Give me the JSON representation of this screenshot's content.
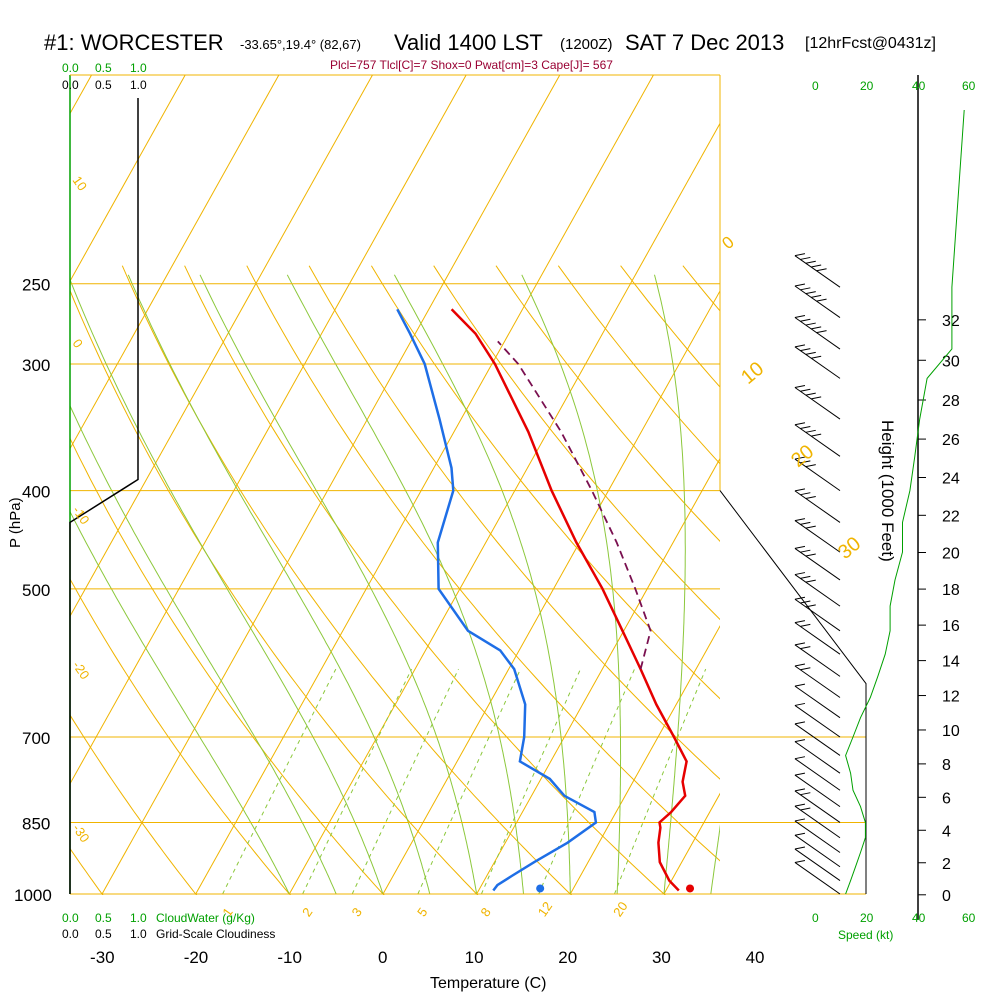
{
  "header": {
    "station": "#1: WORCESTER",
    "coords": "-33.65°,19.4° (82,67)",
    "valid": "Valid 1400 LST",
    "utc": "(1200Z)",
    "date": "SAT 7 Dec 2013",
    "forecast": "[12hrFcst@0431z]"
  },
  "indices": "Plcl=757 Tlcl[C]=7 Shox=0 Pwat[cm]=3 Cape[J]= 567",
  "colors": {
    "isotherm": "#f0b400",
    "dry_adiabat": "#f0b400",
    "moist_adiabat": "#8cc83c",
    "mixing_ratio": "#8cc83c",
    "temperature": "#e60000",
    "dewpoint": "#1e6ee6",
    "parcel": "#7a1050",
    "cloud": "#00a000"
  },
  "left_axis": {
    "label": "P (hPa)",
    "ticks": [
      "250",
      "300",
      "400",
      "500",
      "700",
      "850",
      "1000"
    ]
  },
  "bottom_axis": {
    "label": "Temperature (C)",
    "ticks": [
      "-30",
      "-20",
      "-10",
      "0",
      "10",
      "20",
      "30",
      "40"
    ]
  },
  "right_axis": {
    "label": "Height (1000 Feet)",
    "ticks": [
      "0",
      "2",
      "4",
      "6",
      "8",
      "10",
      "12",
      "14",
      "16",
      "18",
      "20",
      "22",
      "24",
      "26",
      "28",
      "30",
      "32"
    ]
  },
  "cloud_scale": {
    "top_green": [
      "0.0",
      "0.5",
      "1.0"
    ],
    "top_black": [
      "0.0",
      "0.5",
      "1.0"
    ],
    "bottom_green": [
      "0.0",
      "0.5",
      "1.0"
    ],
    "bottom_black": [
      "0.0",
      "0.5",
      "1.0"
    ],
    "cloudwater_label": "CloudWater (g/Kg)",
    "cloudiness_label": "Grid-Scale Cloudiness"
  },
  "speed_scale": {
    "top": [
      "0",
      "20",
      "40",
      "60"
    ],
    "bottom": [
      "0",
      "20",
      "40",
      "60"
    ],
    "label": "Speed (kt)"
  },
  "mixing_ratio_labels": [
    "1",
    "2",
    "3",
    "5",
    "8",
    "12",
    "20"
  ],
  "moist_adiabat_labels": [
    "0",
    "10",
    "20",
    "30"
  ],
  "dry_adiabat_labels": [
    "10",
    "0",
    "-10",
    "-20",
    "-30"
  ],
  "chart_data": {
    "type": "line",
    "plot": "skew-t log-p",
    "xlabel": "Temperature (C)",
    "ylabel": "P (hPa)",
    "xlim": [
      -33,
      46
    ],
    "ylim": [
      1000,
      250
    ],
    "series": [
      {
        "name": "temperature",
        "points": [
          {
            "p": 992,
            "t": 31.3
          },
          {
            "p": 970,
            "t": 29.5
          },
          {
            "p": 930,
            "t": 27
          },
          {
            "p": 890,
            "t": 25.3
          },
          {
            "p": 860,
            "t": 24.3
          },
          {
            "p": 850,
            "t": 23.8
          },
          {
            "p": 830,
            "t": 24.2
          },
          {
            "p": 800,
            "t": 24.4
          },
          {
            "p": 775,
            "t": 23
          },
          {
            "p": 740,
            "t": 21.8
          },
          {
            "p": 700,
            "t": 18.5
          },
          {
            "p": 650,
            "t": 14
          },
          {
            "p": 600,
            "t": 9.5
          },
          {
            "p": 550,
            "t": 4.5
          },
          {
            "p": 500,
            "t": -1
          },
          {
            "p": 450,
            "t": -7.5
          },
          {
            "p": 400,
            "t": -14.3
          },
          {
            "p": 350,
            "t": -21.5
          },
          {
            "p": 300,
            "t": -30.5
          },
          {
            "p": 280,
            "t": -35
          },
          {
            "p": 265,
            "t": -39.5
          }
        ]
      },
      {
        "name": "dewpoint",
        "points": [
          {
            "p": 992,
            "t": 11.5
          },
          {
            "p": 980,
            "t": 11.5
          },
          {
            "p": 960,
            "t": 12.3
          },
          {
            "p": 930,
            "t": 13.6
          },
          {
            "p": 890,
            "t": 15.6
          },
          {
            "p": 850,
            "t": 17
          },
          {
            "p": 830,
            "t": 16
          },
          {
            "p": 800,
            "t": 11.5
          },
          {
            "p": 770,
            "t": 8.6
          },
          {
            "p": 740,
            "t": 4
          },
          {
            "p": 700,
            "t": 2.5
          },
          {
            "p": 650,
            "t": 0
          },
          {
            "p": 600,
            "t": -4
          },
          {
            "p": 575,
            "t": -7
          },
          {
            "p": 550,
            "t": -12
          },
          {
            "p": 500,
            "t": -18.5
          },
          {
            "p": 450,
            "t": -22.3
          },
          {
            "p": 400,
            "t": -24.8
          },
          {
            "p": 380,
            "t": -26.8
          },
          {
            "p": 340,
            "t": -32
          },
          {
            "p": 300,
            "t": -38
          },
          {
            "p": 280,
            "t": -42
          },
          {
            "p": 265,
            "t": -45.3
          }
        ]
      },
      {
        "name": "parcel",
        "points": [
          {
            "p": 600,
            "t": 9.5
          },
          {
            "p": 550,
            "t": 7.5
          },
          {
            "p": 500,
            "t": 2.5
          },
          {
            "p": 450,
            "t": -3.2
          },
          {
            "p": 400,
            "t": -10
          },
          {
            "p": 350,
            "t": -18
          },
          {
            "p": 300,
            "t": -28
          },
          {
            "p": 285,
            "t": -32
          }
        ]
      }
    ],
    "surface": {
      "temperature": 32.5,
      "dewpoint": 16.5
    },
    "isobars": [
      1000,
      850,
      700,
      500,
      400,
      300,
      250
    ],
    "wind_barbs_kt": [
      {
        "p": 1000,
        "speed": 12
      },
      {
        "p": 970,
        "speed": 14
      },
      {
        "p": 940,
        "speed": 16
      },
      {
        "p": 910,
        "speed": 18
      },
      {
        "p": 880,
        "speed": 20
      },
      {
        "p": 850,
        "speed": 20
      },
      {
        "p": 820,
        "speed": 18
      },
      {
        "p": 790,
        "speed": 15
      },
      {
        "p": 760,
        "speed": 14
      },
      {
        "p": 730,
        "speed": 12
      },
      {
        "p": 700,
        "speed": 15
      },
      {
        "p": 670,
        "speed": 18
      },
      {
        "p": 640,
        "speed": 22
      },
      {
        "p": 610,
        "speed": 25
      },
      {
        "p": 580,
        "speed": 28
      },
      {
        "p": 550,
        "speed": 30
      },
      {
        "p": 520,
        "speed": 30
      },
      {
        "p": 490,
        "speed": 32
      },
      {
        "p": 460,
        "speed": 35
      },
      {
        "p": 430,
        "speed": 35
      },
      {
        "p": 400,
        "speed": 38
      },
      {
        "p": 370,
        "speed": 40
      },
      {
        "p": 340,
        "speed": 42
      },
      {
        "p": 310,
        "speed": 45
      },
      {
        "p": 290,
        "speed": 55
      },
      {
        "p": 270,
        "speed": 55
      },
      {
        "p": 252,
        "speed": 55
      }
    ],
    "cloud_fraction": [
      {
        "p": 1000,
        "value": 0
      },
      {
        "p": 430,
        "value": 0
      },
      {
        "p": 390,
        "value": 1
      },
      {
        "p": 250,
        "value": 1
      }
    ]
  }
}
